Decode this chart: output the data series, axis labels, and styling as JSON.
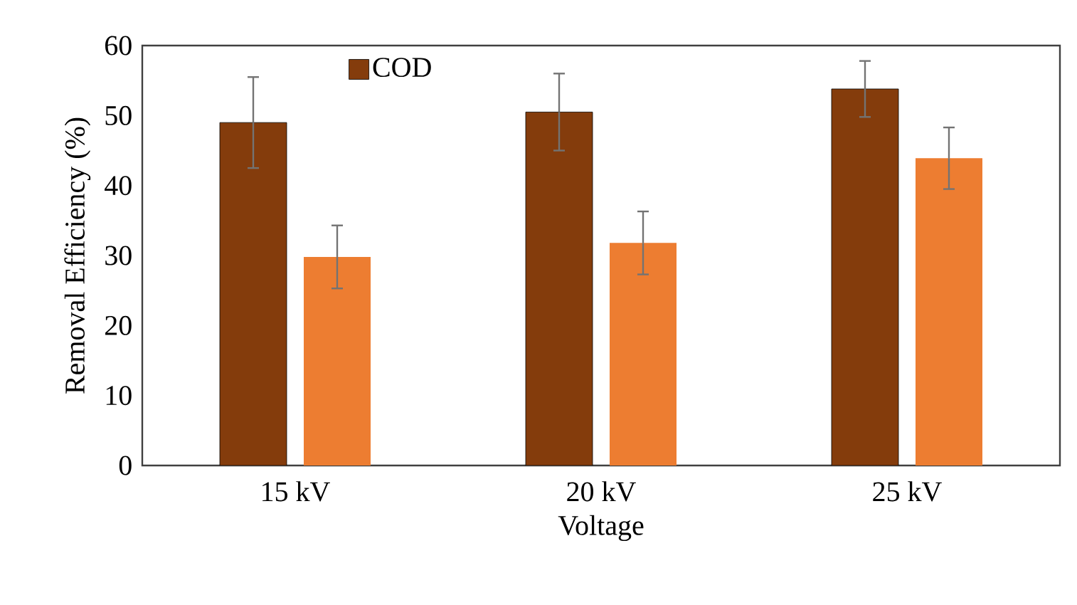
{
  "chart_data": {
    "type": "bar",
    "xlabel": "Voltage",
    "ylabel": "Removal  Efficiency  (%)",
    "categories": [
      "15 kV",
      "20 kV",
      "25 kV"
    ],
    "series": [
      {
        "name": "COD",
        "color": "#843c0c",
        "values": [
          49,
          50.5,
          53.8
        ],
        "errors": [
          6.5,
          5.5,
          4
        ]
      },
      {
        "color": "#ed7d31",
        "values": [
          29.8,
          31.8,
          43.9
        ],
        "errors": [
          4.5,
          4.5,
          4.4
        ]
      }
    ],
    "ylim": [
      0,
      60
    ],
    "yticks": [
      0,
      10,
      20,
      30,
      40,
      50,
      60
    ],
    "legend": "top left"
  }
}
